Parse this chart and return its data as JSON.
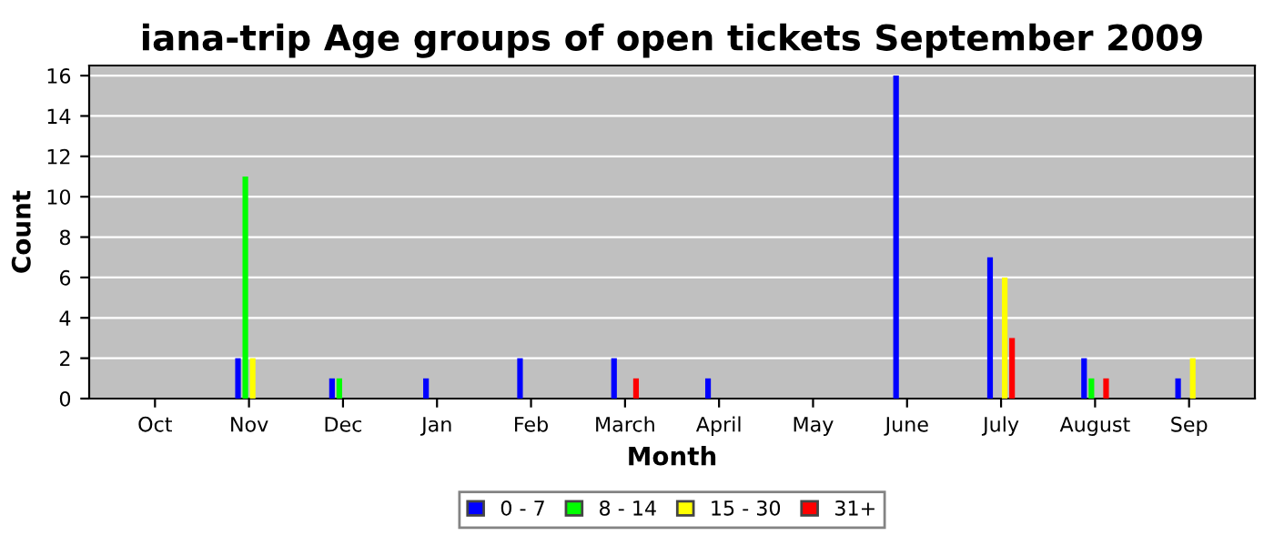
{
  "chart_data": {
    "type": "bar",
    "title": "iana-trip Age groups of open tickets September 2009",
    "xlabel": "Month",
    "ylabel": "Count",
    "categories": [
      "Oct",
      "Nov",
      "Dec",
      "Jan",
      "Feb",
      "March",
      "April",
      "May",
      "June",
      "July",
      "August",
      "Sep"
    ],
    "series": [
      {
        "name": "0 - 7",
        "color": "#0000ff",
        "values": [
          0,
          2,
          1,
          1,
          2,
          2,
          1,
          0,
          16,
          7,
          2,
          1
        ]
      },
      {
        "name": "8 - 14",
        "color": "#00ff00",
        "values": [
          0,
          11,
          1,
          0,
          0,
          0,
          0,
          0,
          0,
          0,
          1,
          0
        ]
      },
      {
        "name": "15 - 30",
        "color": "#ffff00",
        "values": [
          0,
          2,
          0,
          0,
          0,
          0,
          0,
          0,
          0,
          6,
          0,
          2
        ]
      },
      {
        "name": "31+",
        "color": "#ff0000",
        "values": [
          0,
          0,
          0,
          0,
          0,
          1,
          0,
          0,
          0,
          3,
          1,
          0
        ]
      }
    ],
    "ylim": [
      0,
      16.5
    ],
    "yticks": [
      0,
      2,
      4,
      6,
      8,
      10,
      12,
      14,
      16
    ],
    "grid": "y",
    "legend": "bottom"
  }
}
